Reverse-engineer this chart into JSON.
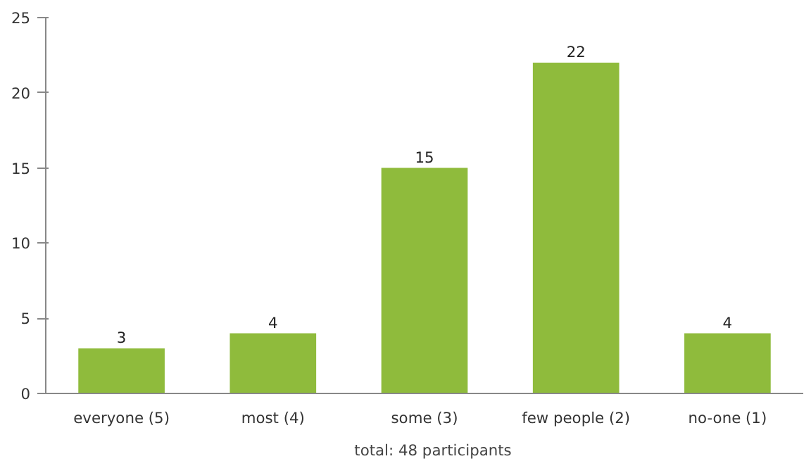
{
  "chart_data": {
    "type": "bar",
    "categories": [
      "everyone (5)",
      "most (4)",
      "some (3)",
      "few people (2)",
      "no-one (1)"
    ],
    "series": [
      {
        "name": "total: 48 participants",
        "color": "#8fbb3c",
        "values": [
          3,
          4,
          15,
          22,
          4
        ]
      }
    ],
    "ylim": [
      0,
      25
    ],
    "yticks": [
      0,
      5,
      10,
      15,
      20,
      25
    ],
    "grid": false,
    "legend": "bottom",
    "data_labels": true
  }
}
